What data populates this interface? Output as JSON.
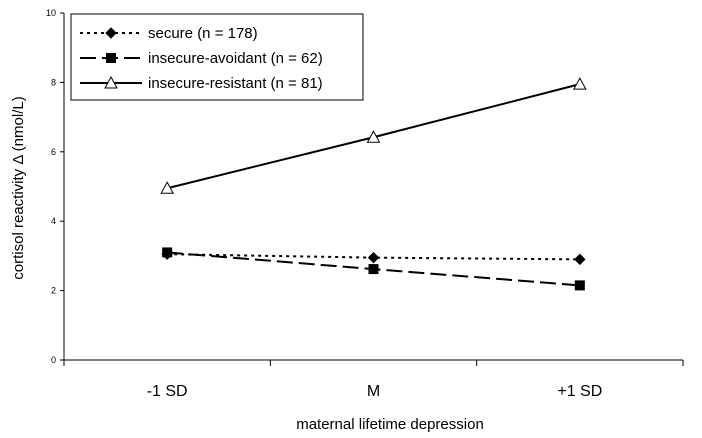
{
  "chart_data": {
    "type": "line",
    "title": "",
    "xlabel": "maternal lifetime depression",
    "ylabel": "cortisol reactivity Δ (nmol/L)",
    "categories": [
      "-1 SD",
      "M",
      "+1 SD"
    ],
    "ylim": [
      0,
      10
    ],
    "yticks": [
      "0",
      "2",
      "4",
      "6",
      "8",
      "10"
    ],
    "grid": false,
    "legend_position": "top-left",
    "series": [
      {
        "name": "secure (n = 178)",
        "values": [
          3.05,
          2.95,
          2.9
        ],
        "line_style": "dotted",
        "marker": "diamond"
      },
      {
        "name": "insecure-avoidant (n = 62)",
        "values": [
          3.1,
          2.62,
          2.15
        ],
        "line_style": "dashed",
        "marker": "square"
      },
      {
        "name": "insecure-resistant (n = 81)",
        "values": [
          4.95,
          6.42,
          7.95
        ],
        "line_style": "solid",
        "marker": "triangle-open"
      }
    ]
  }
}
